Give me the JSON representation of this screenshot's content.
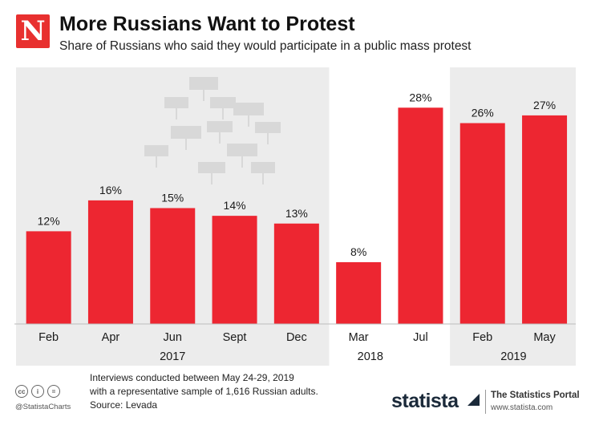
{
  "header": {
    "logo_letter": "N",
    "title": "More Russians Want to Protest",
    "subtitle": "Share of Russians who said they would participate in a public mass protest"
  },
  "chart_data": {
    "type": "bar",
    "categories": [
      "Feb",
      "Apr",
      "Jun",
      "Sept",
      "Dec",
      "Mar",
      "Jul",
      "Feb",
      "May"
    ],
    "values": [
      12,
      16,
      15,
      14,
      13,
      8,
      28,
      26,
      27
    ],
    "value_labels": [
      "12%",
      "16%",
      "15%",
      "14%",
      "13%",
      "8%",
      "28%",
      "26%",
      "27%"
    ],
    "groups": [
      {
        "label": "2017",
        "start": 0,
        "end": 4,
        "shaded": true
      },
      {
        "label": "2018",
        "start": 5,
        "end": 6,
        "shaded": false
      },
      {
        "label": "2019",
        "start": 7,
        "end": 8,
        "shaded": true
      }
    ],
    "ylim": [
      0,
      30
    ],
    "title": "More Russians Want to Protest",
    "subtitle": "Share of Russians who said they would participate in a public mass protest",
    "xlabel": "",
    "ylabel": "",
    "bar_color": "#ed2631",
    "shade_color": "#ececec",
    "legend": "none"
  },
  "footer": {
    "note_line1": "Interviews conducted between May 24-29, 2019",
    "note_line2": "with a representative sample of 1,616 Russian adults.",
    "source": "Source: Levada",
    "handle": "@StatistaCharts",
    "brand": "statista",
    "portal": "The Statistics Portal",
    "portal_url": "www.statista.com"
  }
}
